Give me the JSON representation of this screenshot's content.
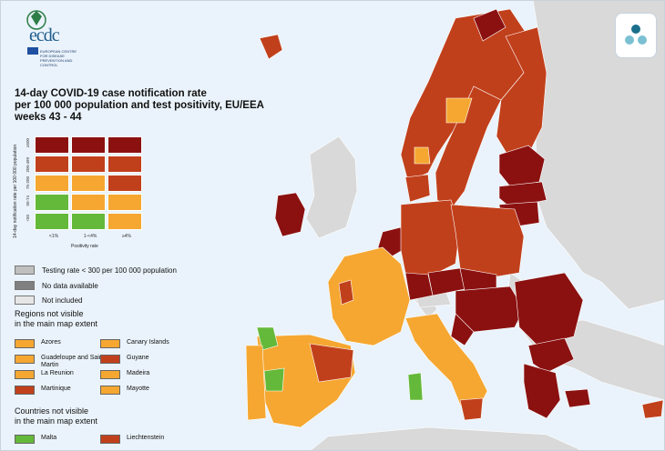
{
  "logo": {
    "name": "ecdc",
    "subtitle": "EUROPEAN CENTRE FOR DISEASE PREVENTION AND CONTROL"
  },
  "title": [
    "14-day COVID-19 case notification rate",
    "per 100 000 population and test positivity, EU/EEA",
    "weeks 43 - 44"
  ],
  "matrix": {
    "y_axis_label": "14-day notification rate per 100 000 population",
    "x_axis_label": "Positivity rate",
    "x_ticks": [
      "<1%",
      "1-<4%",
      "≥4%"
    ],
    "y_ticks": [
      "≥500",
      "200-499",
      "75-200",
      "50-74",
      "<50"
    ],
    "colors": [
      [
        "#8b1111",
        "#8b1111",
        "#8b1111"
      ],
      [
        "#c1401c",
        "#c1401c",
        "#c1401c"
      ],
      [
        "#f5a731",
        "#f5a731",
        "#c1401c"
      ],
      [
        "#65b93a",
        "#f5a731",
        "#f5a731"
      ],
      [
        "#65b93a",
        "#65b93a",
        "#f5a731"
      ]
    ]
  },
  "legend": [
    {
      "label": "Testing rate < 300 per 100 000 population",
      "color": "#bfbfbf"
    },
    {
      "label": "No data available",
      "color": "#808080"
    },
    {
      "label": "Not included",
      "color": "#e6e6e6"
    }
  ],
  "regions_title": [
    "Regions not visible",
    "in the main map extent"
  ],
  "regions": [
    {
      "label": "Azores",
      "color": "#f5a731"
    },
    {
      "label": "Canary Islands",
      "color": "#f5a731"
    },
    {
      "label": "Guadeloupe and Saint Martin",
      "color": "#f5a731"
    },
    {
      "label": "Guyane",
      "color": "#c1401c"
    },
    {
      "label": "La Reunion",
      "color": "#f5a731"
    },
    {
      "label": "Madeira",
      "color": "#f5a731"
    },
    {
      "label": "Martinique",
      "color": "#c1401c"
    },
    {
      "label": "Mayotte",
      "color": "#f5a731"
    }
  ],
  "countries_title": [
    "Countries not visible",
    "in the main map extent"
  ],
  "countries": [
    {
      "label": "Malta",
      "color": "#65b93a"
    },
    {
      "label": "Liechtenstein",
      "color": "#c1401c"
    }
  ],
  "map_colors": {
    "sea": "#eaf3fb",
    "non_eu": "#d9d9d9",
    "dark_red": "#8b1111",
    "red": "#c1401c",
    "orange": "#f5a731",
    "green": "#65b93a"
  }
}
